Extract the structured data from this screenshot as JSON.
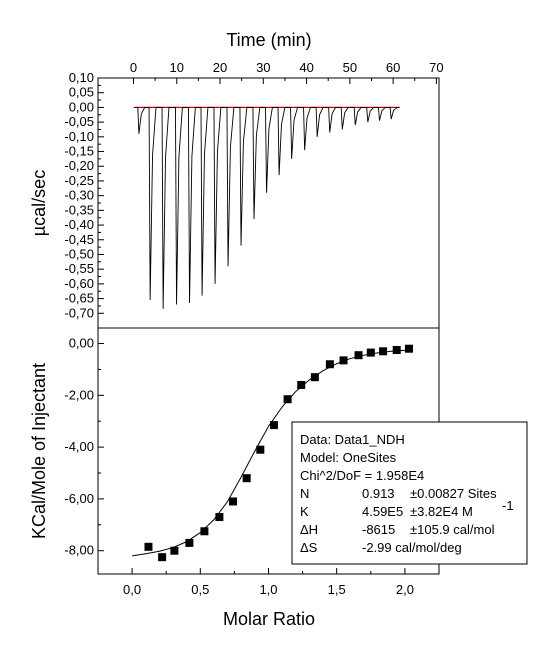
{
  "chart_data": [
    {
      "type": "line",
      "panel": "top",
      "xlabel": "Time (min)",
      "ylabel": "µcal/sec",
      "xlim": [
        -8.2,
        70.6
      ],
      "ylim": [
        -0.75,
        0.1
      ],
      "x_ticks": [
        "0",
        "10",
        "20",
        "30",
        "40",
        "50",
        "60",
        "70"
      ],
      "x_tick_values": [
        0,
        10,
        20,
        30,
        40,
        50,
        60,
        70
      ],
      "y_ticks": [
        "0,10",
        "0,05",
        "0,00",
        "-0,05",
        "-0,10",
        "-0,15",
        "-0,20",
        "-0,25",
        "-0,30",
        "-0,35",
        "-0,40",
        "-0,45",
        "-0,50",
        "-0,55",
        "-0,60",
        "-0,65",
        "-0,70"
      ],
      "y_tick_values": [
        0.1,
        0.05,
        0.0,
        -0.05,
        -0.1,
        -0.15,
        -0.2,
        -0.25,
        -0.3,
        -0.35,
        -0.4,
        -0.45,
        -0.5,
        -0.55,
        -0.6,
        -0.65,
        -0.7
      ],
      "baseline": {
        "x_start": 0.3,
        "x_end": 61.5,
        "y": 0.0,
        "color": "#cc0000"
      },
      "trace_color": "#000000",
      "injection_times": [
        1.0,
        3.6,
        6.6,
        9.7,
        12.7,
        15.6,
        18.6,
        21.6,
        24.6,
        27.6,
        30.5,
        33.4,
        36.3,
        39.3,
        42.2,
        45.1,
        48.0,
        51.0,
        53.9,
        56.6,
        59.3
      ],
      "injection_peaks": [
        -0.09,
        -0.655,
        -0.685,
        -0.67,
        -0.665,
        -0.64,
        -0.6,
        -0.54,
        -0.47,
        -0.38,
        -0.29,
        -0.23,
        -0.175,
        -0.145,
        -0.1,
        -0.085,
        -0.075,
        -0.06,
        -0.05,
        -0.045,
        -0.04
      ]
    },
    {
      "type": "scatter",
      "panel": "bottom",
      "xlabel": "Molar Ratio",
      "ylabel": "KCal/Mole of Injectant",
      "xlim": [
        -0.25,
        2.25
      ],
      "ylim": [
        -8.9,
        0.6
      ],
      "x_ticks": [
        "0,0",
        "0,5",
        "1,0",
        "1,5",
        "2,0"
      ],
      "x_tick_values": [
        0.0,
        0.5,
        1.0,
        1.5,
        2.0
      ],
      "y_ticks": [
        "0,00",
        "-2,00",
        "-4,00",
        "-6,00",
        "-8,00"
      ],
      "y_tick_values": [
        0.0,
        -2.0,
        -4.0,
        -6.0,
        -8.0
      ],
      "points": {
        "x": [
          0.12,
          0.22,
          0.31,
          0.42,
          0.53,
          0.64,
          0.74,
          0.84,
          0.94,
          1.04,
          1.14,
          1.24,
          1.34,
          1.45,
          1.55,
          1.66,
          1.75,
          1.84,
          1.94,
          2.03
        ],
        "y": [
          -7.85,
          -8.25,
          -8.0,
          -7.7,
          -7.25,
          -6.7,
          -6.1,
          -5.2,
          -4.1,
          -3.15,
          -2.15,
          -1.6,
          -1.3,
          -0.8,
          -0.65,
          -0.45,
          -0.35,
          -0.3,
          -0.25,
          -0.2
        ]
      },
      "fit_curve": {
        "x": [
          0.0,
          0.1,
          0.2,
          0.3,
          0.4,
          0.5,
          0.6,
          0.7,
          0.8,
          0.9,
          1.0,
          1.1,
          1.2,
          1.3,
          1.4,
          1.5,
          1.6,
          1.7,
          1.8,
          1.9,
          2.0,
          2.05
        ],
        "y": [
          -8.2,
          -8.12,
          -8.02,
          -7.88,
          -7.65,
          -7.3,
          -6.8,
          -6.1,
          -5.15,
          -4.15,
          -3.2,
          -2.45,
          -1.85,
          -1.4,
          -1.05,
          -0.78,
          -0.58,
          -0.45,
          -0.36,
          -0.3,
          -0.26,
          -0.24
        ]
      },
      "annotation": {
        "lines": [
          "Data: Data1_NDH",
          "Model: OneSites",
          "Chi^2/DoF = 1.958E4"
        ],
        "params": [
          {
            "name": "N",
            "value": "0.913",
            "error": "±0.00827 Sites"
          },
          {
            "name": "K",
            "value": "4.59E5",
            "error": "±3.82E4 M",
            "superscript": "-1"
          },
          {
            "name": "ΔH",
            "value": "-8615",
            "error": "±105.9 cal/mol"
          },
          {
            "name": "ΔS",
            "value": "-2.99 cal/mol/deg",
            "error": ""
          }
        ]
      }
    }
  ]
}
